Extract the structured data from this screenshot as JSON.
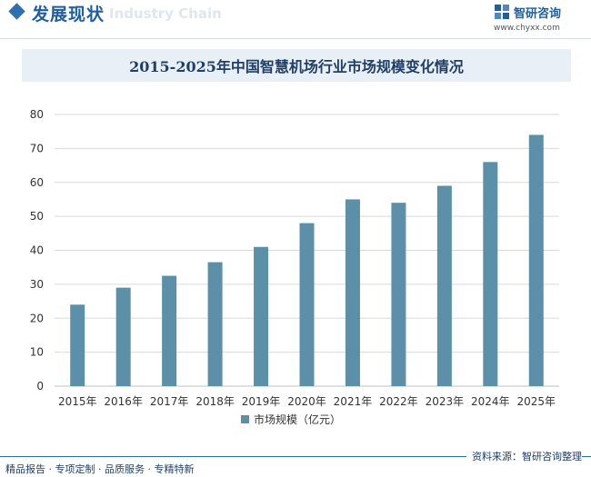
{
  "header": {
    "section_title": "发展现状",
    "ghost_text": "Industry Chain",
    "brand_name": "智研咨询",
    "brand_url": "www.chyxx.com"
  },
  "chart_data": {
    "type": "bar",
    "title": "2015-2025年中国智慧机场行业市场规模变化情况",
    "categories": [
      "2015年",
      "2016年",
      "2017年",
      "2018年",
      "2019年",
      "2020年",
      "2021年",
      "2022年",
      "2023年",
      "2024年",
      "2025年"
    ],
    "series": [
      {
        "name": "市场规模（亿元）",
        "values": [
          24,
          29,
          32.5,
          36.5,
          41,
          48,
          55,
          54,
          59,
          66,
          74
        ]
      }
    ],
    "ylim": [
      0,
      80
    ],
    "yticks": [
      0,
      10,
      20,
      30,
      40,
      50,
      60,
      70,
      80
    ],
    "grid": true,
    "legend": "bottom",
    "bar_color": "#5b90a8",
    "grid_color": "#d9d9d9"
  },
  "footer": {
    "left_text": "精品报告 · 专项定制 · 品质服务 · 专精特新",
    "source_text": "资料来源：智研咨询整理"
  }
}
